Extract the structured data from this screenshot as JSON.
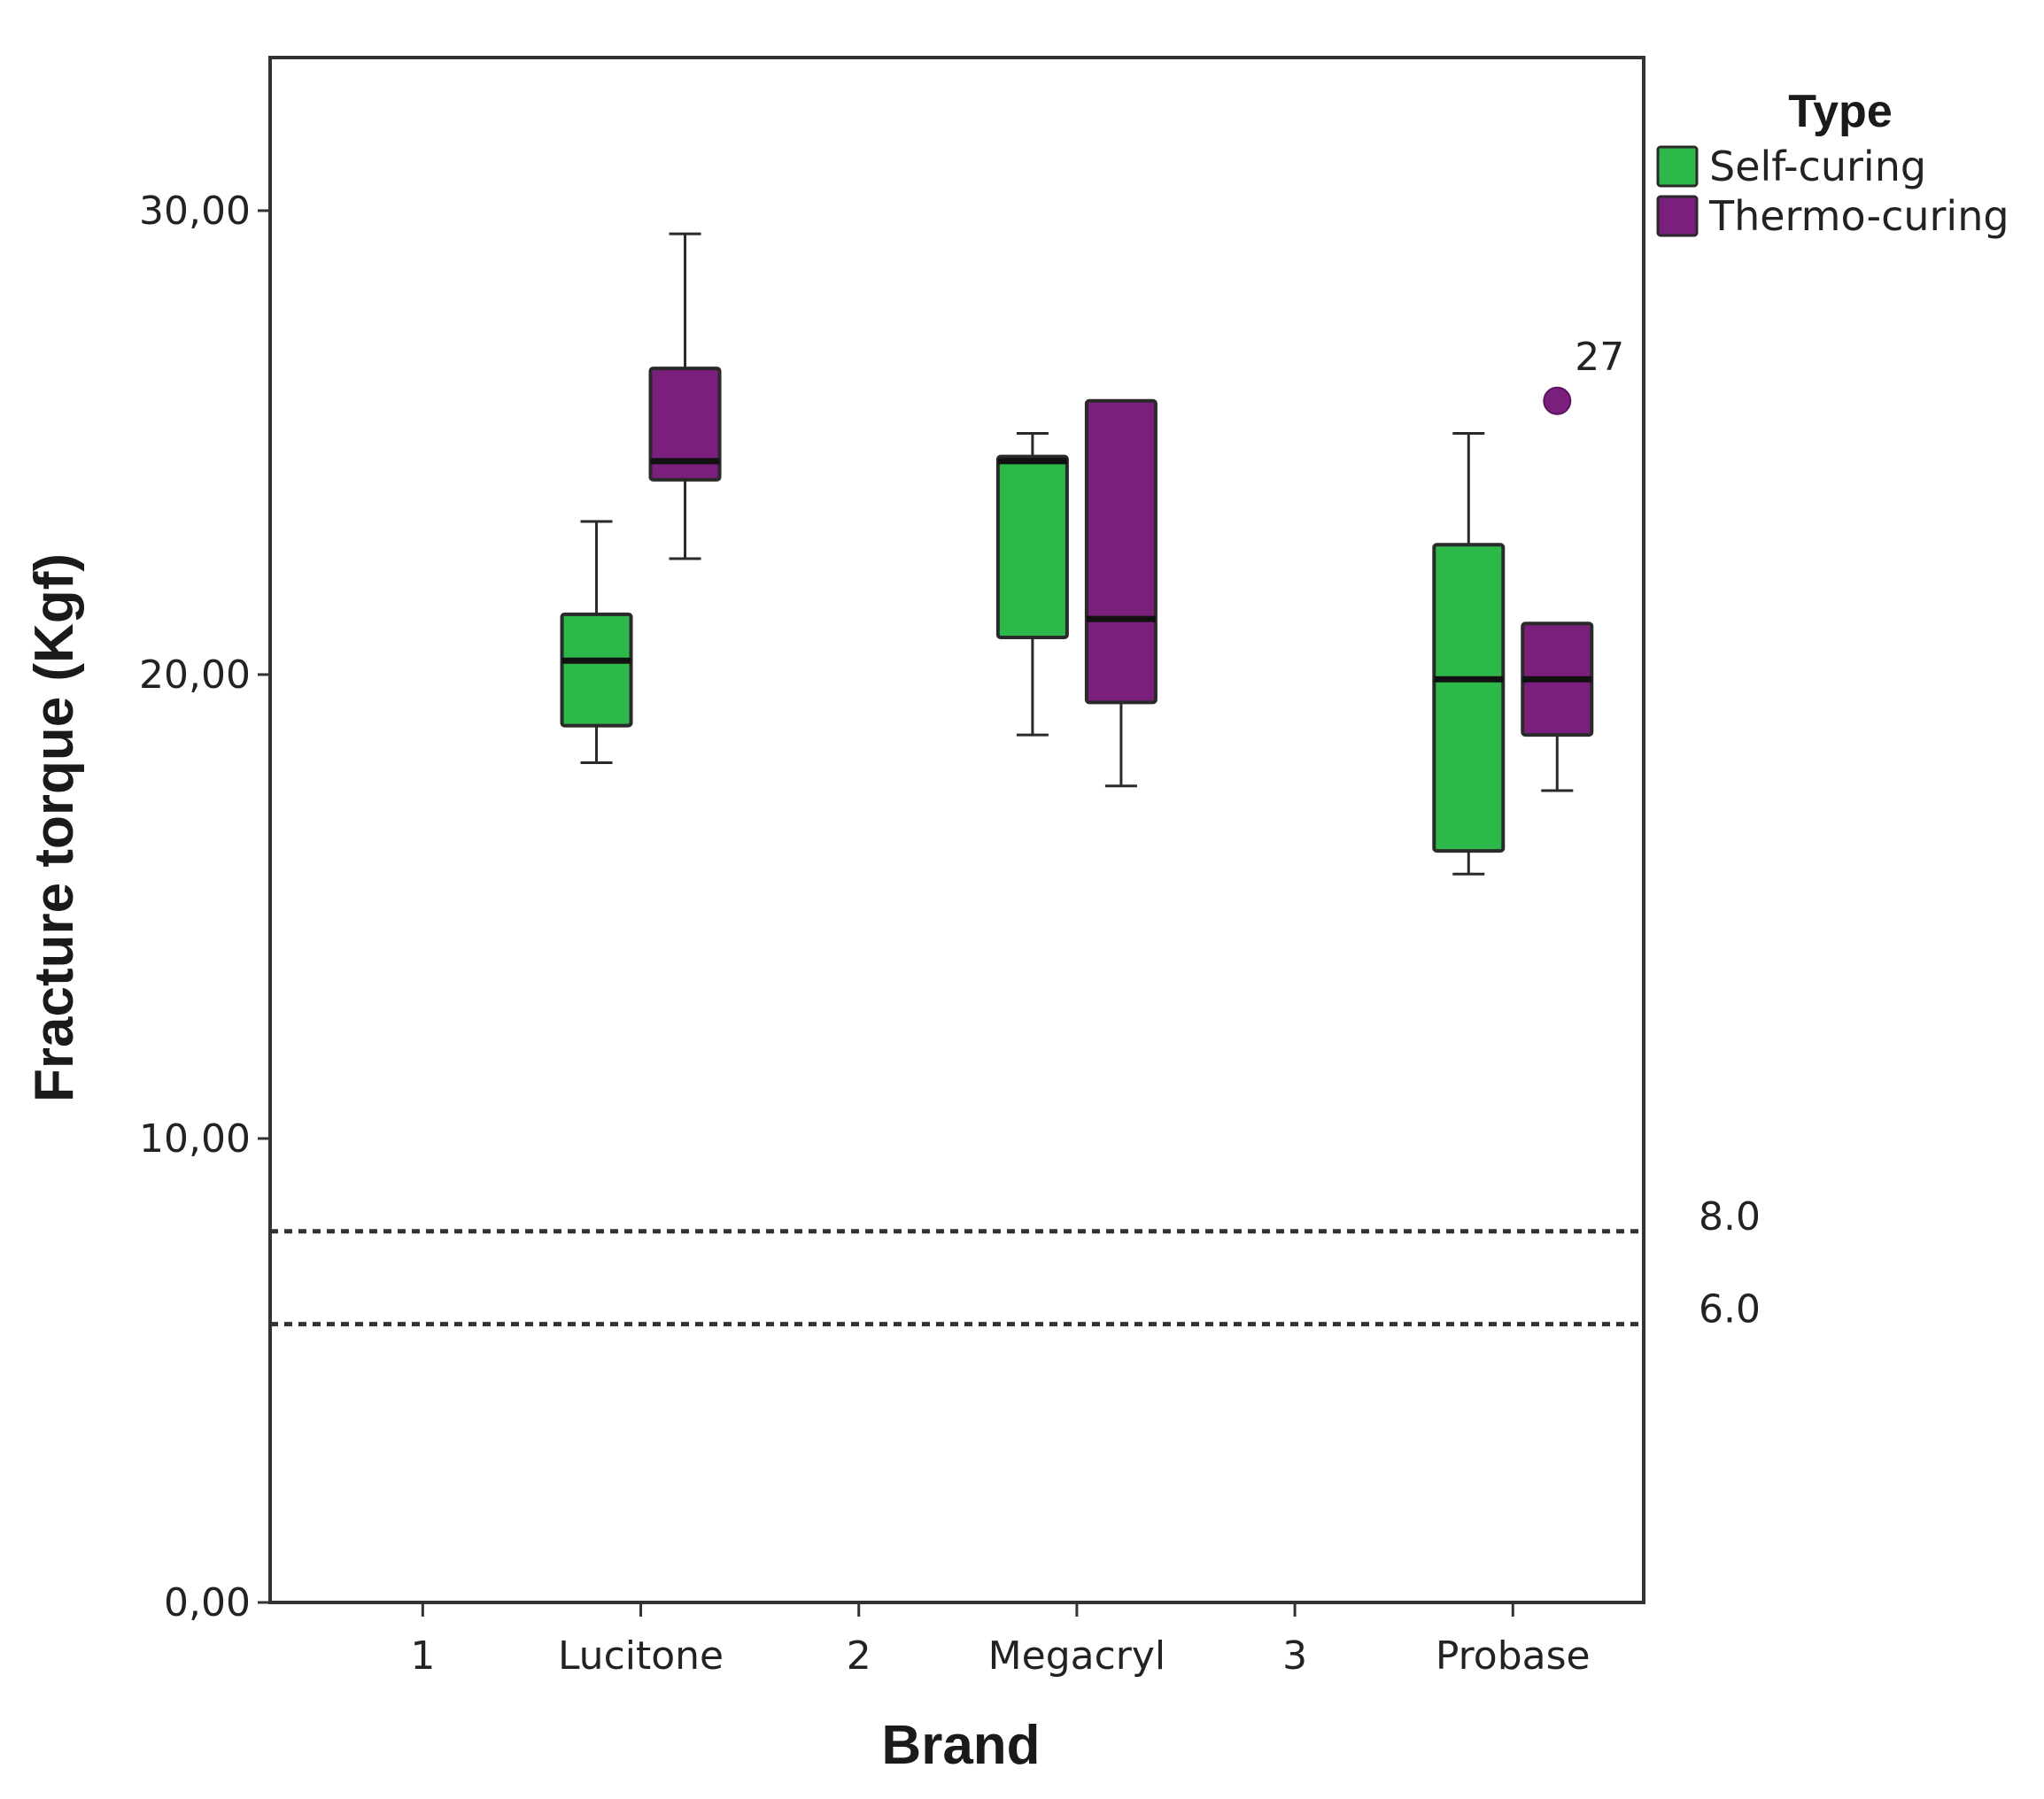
{
  "chart_data": {
    "type": "boxplot",
    "title": "",
    "xlabel": "Brand",
    "ylabel": "Fracture torque (Kgf)",
    "ylim": [
      0,
      33.3
    ],
    "yticks": [
      {
        "value": 0,
        "label": "0,00"
      },
      {
        "value": 10,
        "label": "10,00"
      },
      {
        "value": 20,
        "label": "20,00"
      },
      {
        "value": 30,
        "label": "30,00"
      }
    ],
    "x_ticks": [
      "1",
      "Lucitone",
      "2",
      "Megacryl",
      "3",
      "Probase"
    ],
    "legend": {
      "title": "Type",
      "position": "right",
      "entries": [
        {
          "name": "Self-curing",
          "color": "#2db84a"
        },
        {
          "name": "Thermo-curing",
          "color": "#7b1f7c"
        }
      ]
    },
    "reference_lines": [
      {
        "value": 8.0,
        "label": "8.0"
      },
      {
        "value": 6.0,
        "label": "6.0"
      }
    ],
    "boxes": [
      {
        "category": "Lucitone",
        "series": "Self-curing",
        "whisker_low": 18.1,
        "q1": 18.9,
        "median": 20.3,
        "q3": 21.3,
        "whisker_high": 23.3
      },
      {
        "category": "Lucitone",
        "series": "Thermo-curing",
        "whisker_low": 22.5,
        "q1": 24.2,
        "median": 24.6,
        "q3": 26.6,
        "whisker_high": 29.5
      },
      {
        "category": "Megacryl",
        "series": "Self-curing",
        "whisker_low": 18.7,
        "q1": 20.8,
        "median": 24.6,
        "q3": 24.7,
        "whisker_high": 25.2
      },
      {
        "category": "Megacryl",
        "series": "Thermo-curing",
        "whisker_low": 17.6,
        "q1": 19.4,
        "median": 21.2,
        "q3": 25.9,
        "whisker_high": 25.9
      },
      {
        "category": "Probase",
        "series": "Self-curing",
        "whisker_low": 15.7,
        "q1": 16.2,
        "median": 19.9,
        "q3": 22.8,
        "whisker_high": 25.2
      },
      {
        "category": "Probase",
        "series": "Thermo-curing",
        "whisker_low": 17.5,
        "q1": 18.7,
        "median": 19.9,
        "q3": 21.1,
        "whisker_high": 21.1
      }
    ],
    "outliers": [
      {
        "category": "Probase",
        "series": "Thermo-curing",
        "value": 25.9,
        "label": "27"
      }
    ]
  }
}
